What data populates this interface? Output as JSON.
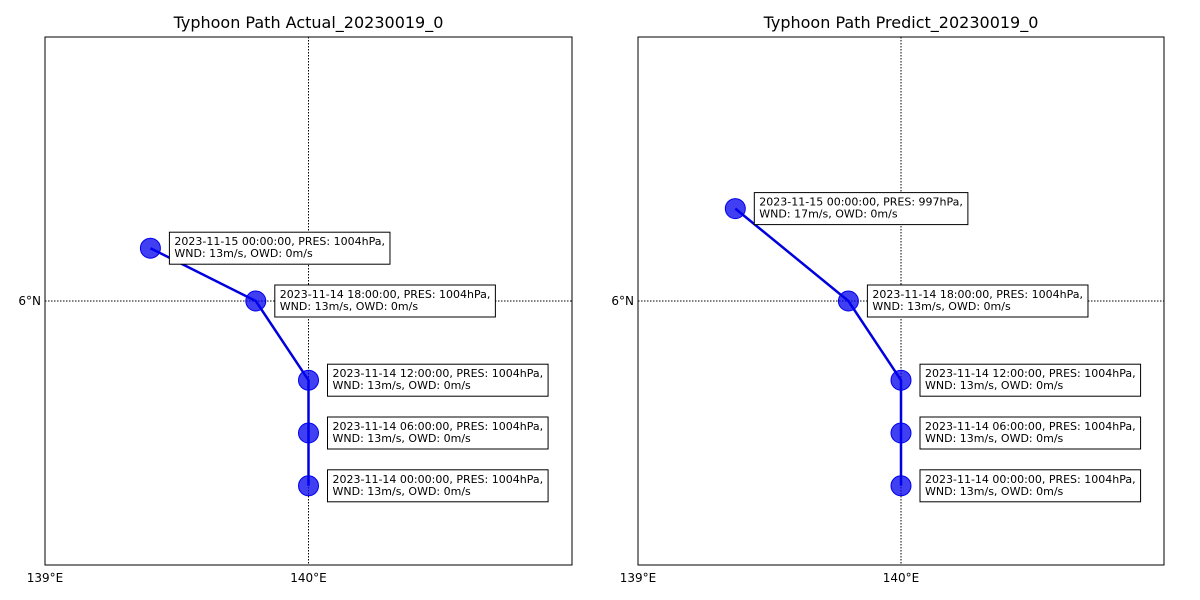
{
  "chart_data": [
    {
      "type": "scatter",
      "title": "Typhoon Path Actual_20230019_0",
      "x_ticks": [
        "139°E",
        "140°E"
      ],
      "y_ticks": [
        "6°N"
      ],
      "xlim": [
        139.0,
        141.0
      ],
      "ylim": [
        5.0,
        7.0
      ],
      "grid_x": 140.0,
      "grid_y": 6.0,
      "marker_color": "#0000ee",
      "line_color": "#0000dd",
      "points": [
        {
          "lon": 140.0,
          "lat": 5.3,
          "line1": "2023-11-14 00:00:00, PRES: 1004hPa,",
          "line2": "WND: 13m/s, OWD: 0m/s"
        },
        {
          "lon": 140.0,
          "lat": 5.5,
          "line1": "2023-11-14 06:00:00, PRES: 1004hPa,",
          "line2": "WND: 13m/s, OWD: 0m/s"
        },
        {
          "lon": 140.0,
          "lat": 5.7,
          "line1": "2023-11-14 12:00:00, PRES: 1004hPa,",
          "line2": "WND: 13m/s, OWD: 0m/s"
        },
        {
          "lon": 139.8,
          "lat": 6.0,
          "line1": "2023-11-14 18:00:00, PRES: 1004hPa,",
          "line2": "WND: 13m/s, OWD: 0m/s"
        },
        {
          "lon": 139.4,
          "lat": 6.2,
          "line1": "2023-11-15 00:00:00, PRES: 1004hPa,",
          "line2": "WND: 13m/s, OWD: 0m/s"
        }
      ]
    },
    {
      "type": "scatter",
      "title": "Typhoon Path Predict_20230019_0",
      "x_ticks": [
        "139°E",
        "140°E"
      ],
      "y_ticks": [
        "6°N"
      ],
      "xlim": [
        139.0,
        141.0
      ],
      "ylim": [
        5.0,
        7.0
      ],
      "grid_x": 140.0,
      "grid_y": 6.0,
      "marker_color": "#0000ee",
      "line_color": "#0000dd",
      "points": [
        {
          "lon": 140.0,
          "lat": 5.3,
          "line1": "2023-11-14 00:00:00, PRES: 1004hPa,",
          "line2": "WND: 13m/s, OWD: 0m/s"
        },
        {
          "lon": 140.0,
          "lat": 5.5,
          "line1": "2023-11-14 06:00:00, PRES: 1004hPa,",
          "line2": "WND: 13m/s, OWD: 0m/s"
        },
        {
          "lon": 140.0,
          "lat": 5.7,
          "line1": "2023-11-14 12:00:00, PRES: 1004hPa,",
          "line2": "WND: 13m/s, OWD: 0m/s"
        },
        {
          "lon": 139.8,
          "lat": 6.0,
          "line1": "2023-11-14 18:00:00, PRES: 1004hPa,",
          "line2": "WND: 13m/s, OWD: 0m/s"
        },
        {
          "lon": 139.37,
          "lat": 6.35,
          "line1": "2023-11-15 00:00:00, PRES: 997hPa,",
          "line2": "WND: 17m/s, OWD: 0m/s"
        }
      ]
    }
  ]
}
